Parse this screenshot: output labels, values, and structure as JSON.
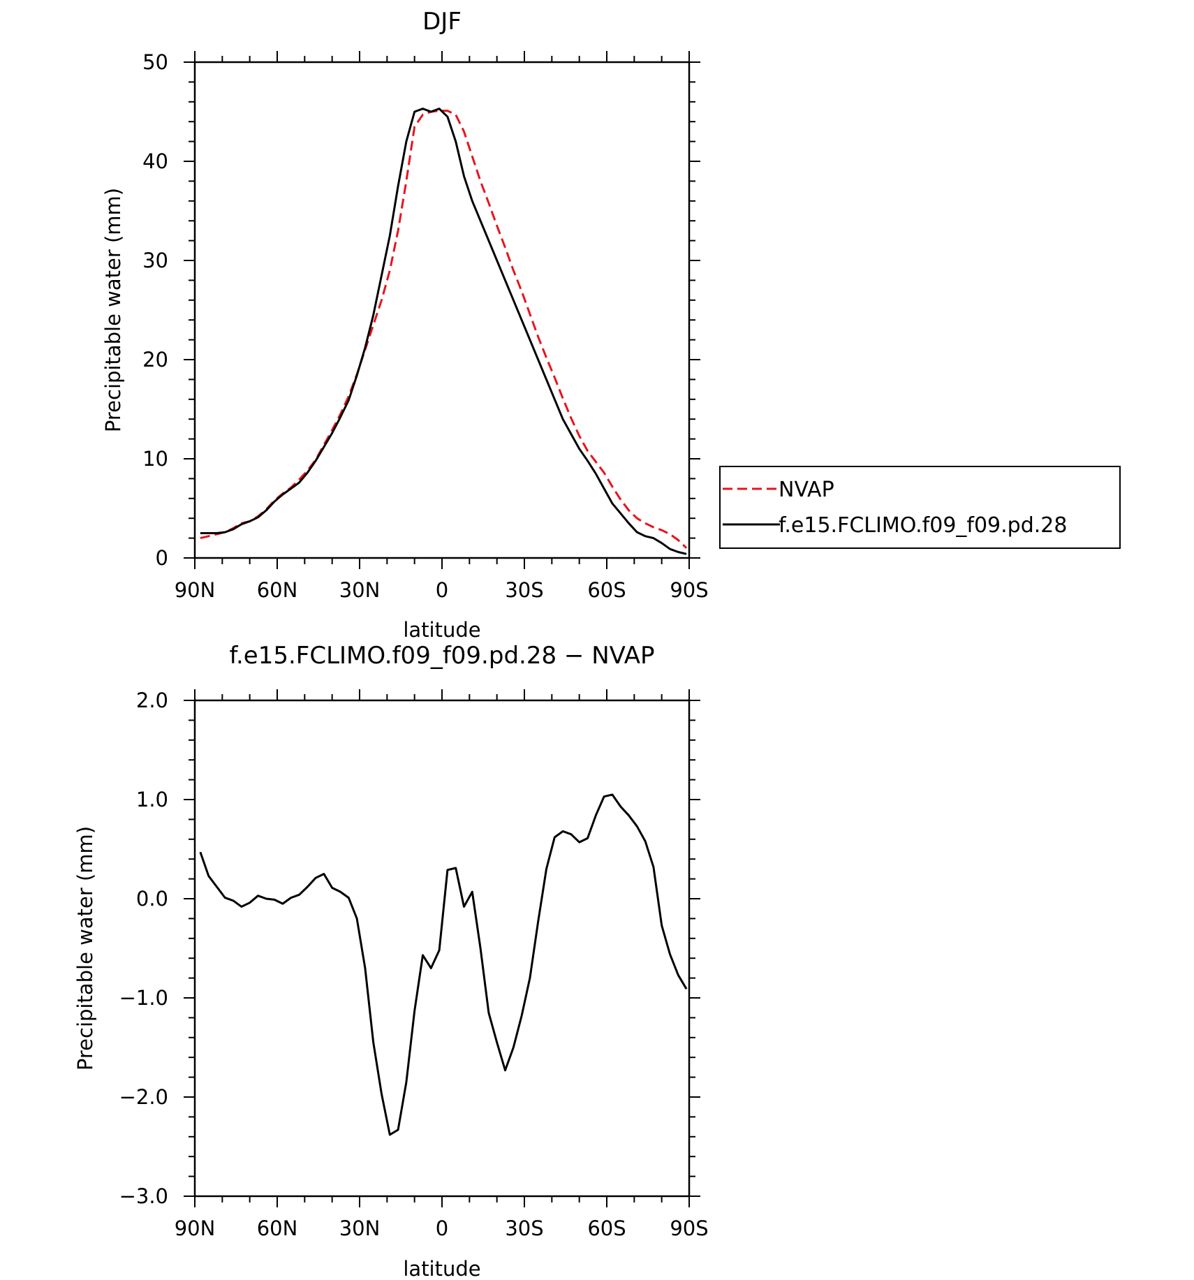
{
  "chart_data": [
    {
      "type": "line",
      "title": "DJF",
      "xlabel": "latitude",
      "ylabel": "Precipitable water (mm)",
      "xlim": [
        90,
        -90
      ],
      "ylim": [
        0,
        50
      ],
      "x_ticks": [
        90,
        60,
        30,
        0,
        -30,
        -60,
        -90
      ],
      "x_tick_labels": [
        "90N",
        "60N",
        "30N",
        "0",
        "30S",
        "60S",
        "90S"
      ],
      "y_ticks": [
        0,
        10,
        20,
        30,
        40,
        50
      ],
      "y_tick_labels": [
        "0",
        "10",
        "20",
        "30",
        "40",
        "50"
      ],
      "grid": false,
      "legend_position": "right",
      "series": [
        {
          "name": "NVAP",
          "color": "#e8141c",
          "dash": "dashed",
          "x": [
            88,
            85,
            82,
            79,
            76,
            73,
            70,
            67,
            64,
            61,
            58,
            55,
            52,
            49,
            46,
            43,
            40,
            37,
            34,
            31,
            28,
            25,
            22,
            19,
            16,
            13,
            10,
            7,
            4,
            1,
            -2,
            -5,
            -8,
            -11,
            -14,
            -17,
            -20,
            -23,
            -26,
            -29,
            -32,
            -35,
            -38,
            -41,
            -44,
            -47,
            -50,
            -53,
            -56,
            -59,
            -62,
            -65,
            -68,
            -71,
            -74,
            -77,
            -80,
            -83,
            -86,
            -89
          ],
          "y": [
            2.0,
            2.2,
            2.4,
            2.6,
            3.0,
            3.5,
            3.7,
            4.2,
            4.9,
            5.8,
            6.5,
            7.1,
            7.9,
            8.8,
            9.9,
            11.4,
            12.9,
            14.5,
            16.3,
            18.5,
            21.0,
            23.5,
            26.0,
            29.0,
            33.0,
            38.0,
            43.5,
            44.7,
            45.0,
            45.1,
            45.1,
            44.7,
            43.0,
            40.5,
            38.0,
            35.8,
            33.5,
            31.3,
            29.0,
            26.9,
            24.6,
            22.3,
            20.2,
            18.2,
            16.1,
            14.1,
            12.3,
            10.8,
            9.7,
            8.6,
            7.2,
            5.9,
            4.8,
            4.0,
            3.5,
            3.1,
            2.8,
            2.4,
            1.8,
            1.0
          ]
        },
        {
          "name": "f.e15.FCLIMO.f09_f09.pd.28",
          "color": "#000000",
          "dash": "solid",
          "x": [
            88,
            85,
            82,
            79,
            76,
            73,
            70,
            67,
            64,
            61,
            58,
            55,
            52,
            49,
            46,
            43,
            40,
            37,
            34,
            31,
            28,
            25,
            22,
            19,
            16,
            13,
            10,
            7,
            4,
            1,
            -2,
            -5,
            -8,
            -11,
            -14,
            -17,
            -20,
            -23,
            -26,
            -29,
            -32,
            -35,
            -38,
            -41,
            -44,
            -47,
            -50,
            -53,
            -56,
            -59,
            -62,
            -65,
            -68,
            -71,
            -74,
            -77,
            -80,
            -83,
            -86,
            -89
          ],
          "y": [
            2.5,
            2.5,
            2.5,
            2.6,
            2.9,
            3.4,
            3.7,
            4.1,
            4.8,
            5.7,
            6.4,
            7.0,
            7.6,
            8.6,
            9.8,
            11.2,
            12.6,
            14.2,
            15.9,
            18.4,
            21.2,
            24.5,
            28.5,
            32.5,
            37.5,
            42.0,
            45.0,
            45.3,
            45.0,
            45.3,
            44.5,
            42.0,
            38.5,
            36.0,
            34.0,
            32.0,
            30.0,
            28.0,
            26.0,
            24.0,
            22.0,
            20.0,
            18.0,
            16.0,
            14.0,
            12.5,
            11.0,
            9.8,
            8.5,
            7.0,
            5.5,
            4.5,
            3.5,
            2.6,
            2.2,
            2.0,
            1.5,
            0.9,
            0.6,
            0.4
          ]
        }
      ]
    },
    {
      "type": "line",
      "title": "f.e15.FCLIMO.f09_f09.pd.28 - NVAP",
      "xlabel": "latitude",
      "ylabel": "Precipitable water (mm)",
      "xlim": [
        90,
        -90
      ],
      "ylim": [
        -3.0,
        2.0
      ],
      "x_ticks": [
        90,
        60,
        30,
        0,
        -30,
        -60,
        -90
      ],
      "x_tick_labels": [
        "90N",
        "60N",
        "30N",
        "0",
        "30S",
        "60S",
        "90S"
      ],
      "y_ticks": [
        -3.0,
        -2.0,
        -1.0,
        0.0,
        1.0,
        2.0
      ],
      "y_tick_labels": [
        "-3.0",
        "-2.0",
        "-1.0",
        "0.0",
        "1.0",
        "2.0"
      ],
      "grid": false,
      "series": [
        {
          "color": "#000000",
          "dash": "solid",
          "x": [
            88,
            85,
            82,
            79,
            76,
            73,
            70,
            67,
            64,
            61,
            58,
            55,
            52,
            49,
            46,
            43,
            40,
            37,
            34,
            31,
            28,
            25,
            22,
            19,
            16,
            13,
            10,
            7,
            4,
            1,
            -2,
            -5,
            -8,
            -11,
            -14,
            -17,
            -20,
            -23,
            -26,
            -29,
            -32,
            -35,
            -38,
            -41,
            -44,
            -47,
            -50,
            -53,
            -56,
            -59,
            -62,
            -65,
            -68,
            -71,
            -74,
            -77,
            -80,
            -83,
            -86,
            -89
          ],
          "y": [
            0.47,
            0.23,
            0.12,
            0.01,
            -0.02,
            -0.08,
            -0.04,
            0.03,
            0.0,
            -0.01,
            -0.05,
            0.01,
            0.04,
            0.12,
            0.21,
            0.25,
            0.11,
            0.07,
            0.01,
            -0.2,
            -0.7,
            -1.45,
            -1.97,
            -2.38,
            -2.33,
            -1.85,
            -1.13,
            -0.57,
            -0.7,
            -0.52,
            0.29,
            0.31,
            -0.08,
            0.07,
            -0.5,
            -1.15,
            -1.45,
            -1.73,
            -1.5,
            -1.18,
            -0.8,
            -0.23,
            0.3,
            0.62,
            0.68,
            0.65,
            0.57,
            0.61,
            0.84,
            1.03,
            1.05,
            0.93,
            0.84,
            0.73,
            0.58,
            0.32,
            -0.27,
            -0.56,
            -0.77,
            -0.91
          ]
        }
      ]
    }
  ]
}
